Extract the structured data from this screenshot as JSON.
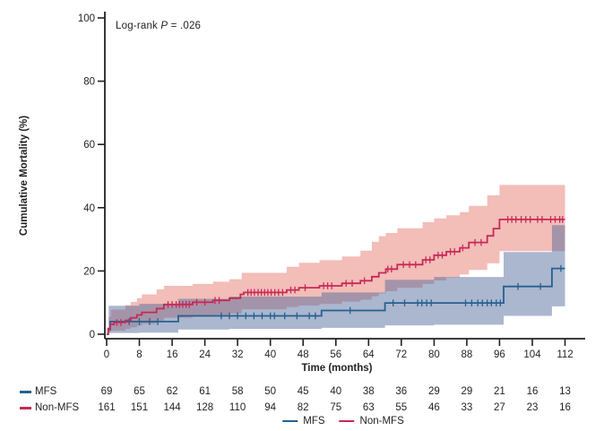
{
  "figure": {
    "annotation": {
      "prefix": "Log-rank ",
      "p_symbol": "P",
      "suffix": " = .026"
    }
  },
  "colors": {
    "axis": "#231f20",
    "text": "#231f20",
    "mfs_line": "#27608f",
    "non_mfs_line": "#c62a56",
    "mfs_band_rgba": "rgba(74,103,152,0.47)",
    "non_mfs_band": "#f3bdb8"
  },
  "chart_data": {
    "type": "line",
    "variant": "kaplan-meier-cumulative-mortality-step",
    "title": "",
    "annotation": "Log-rank P = .026",
    "xlabel": "Time (months)",
    "ylabel": "Cumulative Mortality (%)",
    "xlim": [
      0,
      112
    ],
    "ylim": [
      0,
      100
    ],
    "x_ticks": [
      0,
      8,
      16,
      24,
      32,
      40,
      48,
      56,
      64,
      72,
      80,
      88,
      96,
      104,
      112
    ],
    "y_ticks": [
      0,
      20,
      40,
      60,
      80,
      100
    ],
    "grid": false,
    "legend_position": "bottom",
    "series": [
      {
        "name": "MFS",
        "color": "#27608f",
        "band_color": "rgba(74,103,152,0.47)",
        "steps": [
          [
            0,
            0
          ],
          [
            0.4,
            1.5
          ],
          [
            0.9,
            4.0
          ],
          [
            17.5,
            5.8
          ],
          [
            52.5,
            7.5
          ],
          [
            68,
            9.9
          ],
          [
            97,
            15.1
          ],
          [
            108.8,
            20.8
          ]
        ],
        "final_value": 20.8,
        "censor_times": [
          5.5,
          8,
          10.5,
          12.5,
          28,
          30,
          32,
          34,
          36,
          38,
          40,
          41,
          43.5,
          46.5,
          49.5,
          51,
          59.5,
          70,
          72.8,
          76,
          77,
          78.2,
          79.3,
          87.7,
          89.2,
          90.7,
          91.8,
          93,
          94,
          95.2,
          96.2,
          100.5,
          106,
          111
        ],
        "ci_upper": [
          [
            0.5,
            9.0
          ],
          [
            8,
            9.6
          ],
          [
            17.5,
            11.2
          ],
          [
            30,
            11.9
          ],
          [
            52.5,
            13.2
          ],
          [
            68,
            17.2
          ],
          [
            80,
            18.1
          ],
          [
            97,
            26.0
          ],
          [
            108.8,
            34.5
          ]
        ],
        "ci_lower": [
          [
            0.5,
            0.4
          ],
          [
            8,
            0.5
          ],
          [
            17.5,
            1.5
          ],
          [
            30,
            1.7
          ],
          [
            52.5,
            2.0
          ],
          [
            68,
            2.8
          ],
          [
            80,
            3.0
          ],
          [
            97,
            5.8
          ],
          [
            108.8,
            8.8
          ]
        ]
      },
      {
        "name": "Non-MFS",
        "color": "#c62a56",
        "band_color": "#f3bdb8",
        "steps": [
          [
            0,
            0
          ],
          [
            0.4,
            1.8
          ],
          [
            0.9,
            3.1
          ],
          [
            1.8,
            3.7
          ],
          [
            4.6,
            4.4
          ],
          [
            5.9,
            5.2
          ],
          [
            7.4,
            6.1
          ],
          [
            8.6,
            6.9
          ],
          [
            12.2,
            8.1
          ],
          [
            14,
            9.4
          ],
          [
            21,
            10.1
          ],
          [
            26,
            10.7
          ],
          [
            30,
            11.4
          ],
          [
            32.7,
            12.6
          ],
          [
            33.5,
            13.2
          ],
          [
            44,
            14.0
          ],
          [
            47,
            14.7
          ],
          [
            52,
            15.3
          ],
          [
            57.5,
            16.1
          ],
          [
            62,
            16.9
          ],
          [
            64.8,
            18.2
          ],
          [
            66.5,
            19.4
          ],
          [
            68.2,
            20.6
          ],
          [
            71,
            22.0
          ],
          [
            77.2,
            23.5
          ],
          [
            80,
            25.0
          ],
          [
            83,
            26.1
          ],
          [
            86.3,
            27.3
          ],
          [
            88.5,
            29.0
          ],
          [
            93,
            31.1
          ],
          [
            94.5,
            33.4
          ],
          [
            96,
            36.3
          ]
        ],
        "final_value": 36.3,
        "censor_times": [
          2.5,
          3.5,
          15,
          16,
          17,
          17.8,
          18.6,
          19.4,
          20.2,
          22,
          24,
          26.5,
          27.5,
          34.5,
          35.3,
          36.1,
          37,
          37.8,
          38.6,
          39.4,
          40.2,
          41.1,
          42,
          43,
          45,
          46,
          48.5,
          53,
          54,
          55,
          58.5,
          60,
          63,
          68.7,
          69.6,
          72.5,
          74,
          75.5,
          78,
          79,
          81,
          82,
          84,
          85,
          87,
          90,
          91.5,
          98,
          99,
          100,
          101.3,
          102.4,
          103.5,
          105.3,
          106.4,
          108.5,
          109.6,
          110.7,
          111.4
        ],
        "ci_upper": [
          [
            0.5,
            5.5
          ],
          [
            1,
            7.8
          ],
          [
            4.6,
            9.2
          ],
          [
            5.9,
            10.2
          ],
          [
            7.4,
            11.4
          ],
          [
            8.6,
            12.6
          ],
          [
            12.2,
            14.2
          ],
          [
            14,
            15.3
          ],
          [
            21,
            15.9
          ],
          [
            26,
            16.6
          ],
          [
            30,
            17.4
          ],
          [
            33,
            19.4
          ],
          [
            44,
            21.3
          ],
          [
            47,
            22.6
          ],
          [
            52,
            23.4
          ],
          [
            57.5,
            24.6
          ],
          [
            62,
            26.4
          ],
          [
            64.8,
            29.2
          ],
          [
            66.5,
            31.0
          ],
          [
            68.2,
            32.0
          ],
          [
            71,
            33.5
          ],
          [
            77.2,
            35.4
          ],
          [
            80,
            36.6
          ],
          [
            83,
            37.6
          ],
          [
            86.3,
            38.6
          ],
          [
            88.5,
            40.6
          ],
          [
            93,
            43.9
          ],
          [
            96,
            47.2
          ]
        ],
        "ci_lower": [
          [
            0.5,
            0.5
          ],
          [
            1,
            1.1
          ],
          [
            4.6,
            1.7
          ],
          [
            5.9,
            2.2
          ],
          [
            7.4,
            2.7
          ],
          [
            8.6,
            3.3
          ],
          [
            12.2,
            4.3
          ],
          [
            14,
            5.2
          ],
          [
            21,
            5.7
          ],
          [
            26,
            6.1
          ],
          [
            30,
            6.6
          ],
          [
            33,
            7.9
          ],
          [
            44,
            8.6
          ],
          [
            47,
            9.1
          ],
          [
            52,
            9.6
          ],
          [
            57.5,
            10.3
          ],
          [
            62,
            10.9
          ],
          [
            64.8,
            12.0
          ],
          [
            66.5,
            12.9
          ],
          [
            68.2,
            13.6
          ],
          [
            71,
            14.7
          ],
          [
            77.2,
            15.9
          ],
          [
            80,
            17.0
          ],
          [
            83,
            17.9
          ],
          [
            86.3,
            18.9
          ],
          [
            88.5,
            20.3
          ],
          [
            93,
            22.4
          ],
          [
            96,
            26.3
          ]
        ]
      }
    ],
    "at_risk": {
      "times": [
        0,
        8,
        16,
        24,
        32,
        40,
        48,
        56,
        64,
        72,
        80,
        88,
        96,
        104,
        112
      ],
      "rows": [
        {
          "label": "MFS",
          "values": [
            69,
            65,
            62,
            61,
            58,
            50,
            45,
            40,
            38,
            36,
            29,
            29,
            21,
            16,
            13
          ]
        },
        {
          "label": "Non-MFS",
          "values": [
            161,
            151,
            144,
            128,
            110,
            94,
            82,
            75,
            63,
            55,
            46,
            33,
            27,
            23,
            16
          ]
        }
      ]
    },
    "legend": [
      "MFS",
      "Non-MFS"
    ]
  }
}
